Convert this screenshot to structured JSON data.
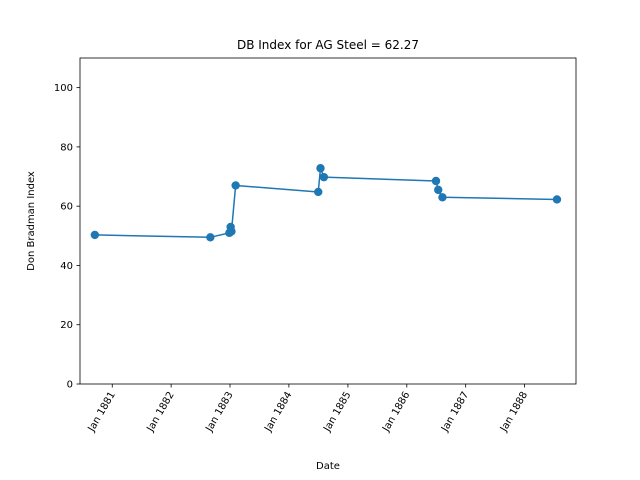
{
  "chart_data": {
    "type": "line",
    "title": "DB Index for AG Steel = 62.27",
    "xlabel": "Date",
    "ylabel": "Don Bradman Index",
    "xlim": [
      "1880-06-15",
      "1888-11-15"
    ],
    "ylim": [
      0,
      110
    ],
    "yticks": [
      0,
      20,
      40,
      60,
      80,
      100
    ],
    "xticks": [
      {
        "date": "1881-01-01",
        "label": "Jan 1881"
      },
      {
        "date": "1882-01-01",
        "label": "Jan 1882"
      },
      {
        "date": "1883-01-01",
        "label": "Jan 1883"
      },
      {
        "date": "1884-01-01",
        "label": "Jan 1884"
      },
      {
        "date": "1885-01-01",
        "label": "Jan 1885"
      },
      {
        "date": "1886-01-01",
        "label": "Jan 1886"
      },
      {
        "date": "1887-01-01",
        "label": "Jan 1887"
      },
      {
        "date": "1888-01-01",
        "label": "Jan 1888"
      }
    ],
    "grid": false,
    "color": "#1f77b4",
    "series": [
      {
        "x": [
          "1880-09-15",
          "1882-09-01",
          "1882-12-28",
          "1883-01-05",
          "1883-01-10",
          "1883-02-05",
          "1884-07-01",
          "1884-07-15",
          "1884-08-05",
          "1886-07-01",
          "1886-07-15",
          "1886-08-10",
          "1888-07-20"
        ],
        "y": [
          50.3,
          49.5,
          51.0,
          53.0,
          51.5,
          67.0,
          64.8,
          72.8,
          69.8,
          68.5,
          65.5,
          63.0,
          62.27
        ]
      }
    ]
  }
}
